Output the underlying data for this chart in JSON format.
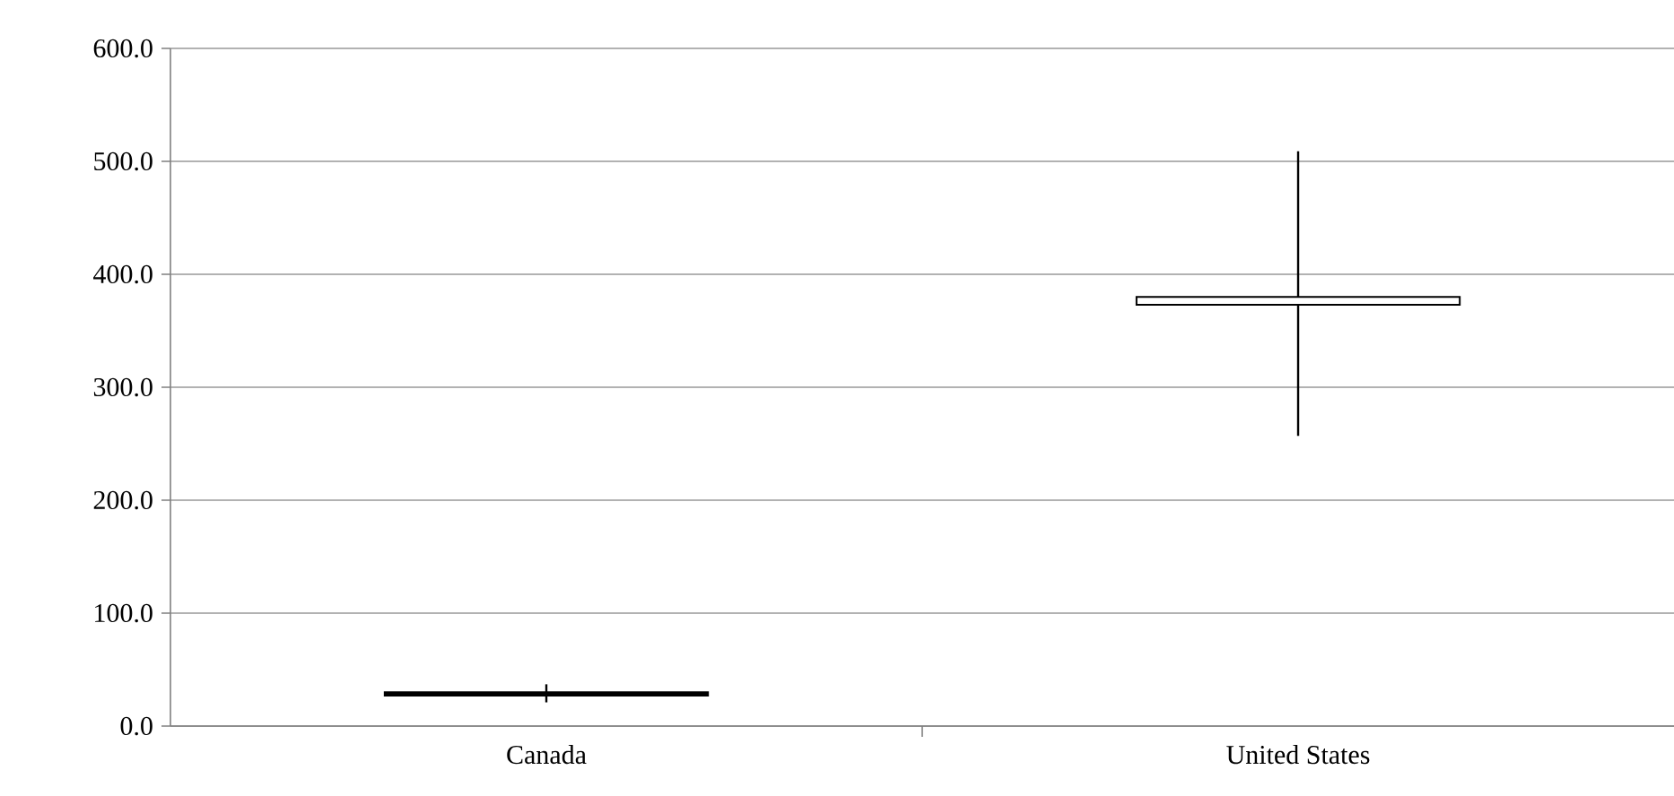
{
  "chart_data": {
    "type": "candlestick",
    "categories": [
      "Canada",
      "United States"
    ],
    "ohlc": [
      [
        30,
        37,
        21,
        27
      ],
      [
        373,
        509,
        257,
        380
      ]
    ],
    "color": "#000000",
    "ylim": [
      0,
      600
    ],
    "yticks": [
      {
        "value": 0,
        "label": "0.0"
      },
      {
        "value": 100,
        "label": "100.0"
      },
      {
        "value": 200,
        "label": "200.0"
      },
      {
        "value": 300,
        "label": "300.0"
      },
      {
        "value": 400,
        "label": "400.0"
      },
      {
        "value": 500,
        "label": "500.0"
      },
      {
        "value": 600,
        "label": "600.0"
      }
    ],
    "grid": "y"
  }
}
